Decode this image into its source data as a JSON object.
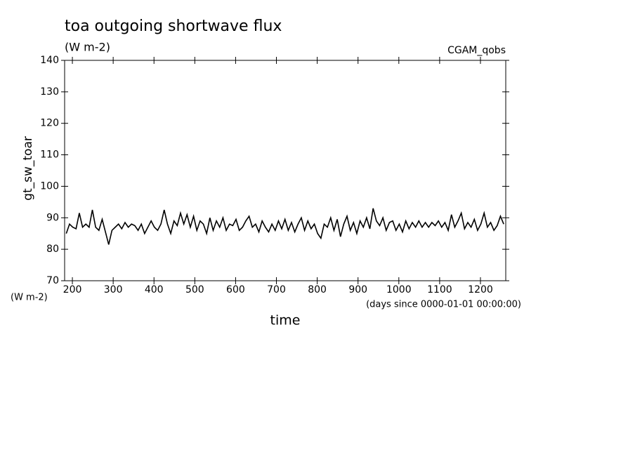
{
  "chart_data": {
    "type": "line",
    "title": "toa outgoing shortwave flux",
    "subtitle": "(W m-2)",
    "annotation": "CGAM_qobs",
    "ylabel": "gt_sw_toar",
    "yunits": "(W m-2)",
    "xlabel": "time",
    "xunits": "(days since 0000-01-01 00:00:00)",
    "color": "#000000",
    "xlim": [
      181,
      1262
    ],
    "xticks": [
      200,
      300,
      400,
      500,
      600,
      700,
      800,
      900,
      1000,
      1100,
      1200
    ],
    "ylim": [
      70,
      140
    ],
    "yticks": [
      70,
      80,
      90,
      100,
      110,
      120,
      130,
      140
    ],
    "x": [
      185,
      193,
      201,
      209,
      217,
      225,
      233,
      241,
      249,
      257,
      265,
      273,
      281,
      289,
      297,
      305,
      313,
      321,
      329,
      337,
      345,
      353,
      361,
      369,
      377,
      385,
      393,
      401,
      409,
      417,
      425,
      433,
      441,
      449,
      457,
      465,
      473,
      481,
      489,
      497,
      505,
      513,
      521,
      529,
      537,
      545,
      553,
      561,
      569,
      577,
      585,
      593,
      601,
      609,
      617,
      625,
      633,
      641,
      649,
      657,
      665,
      673,
      681,
      689,
      697,
      705,
      713,
      721,
      729,
      737,
      745,
      753,
      761,
      769,
      777,
      785,
      793,
      801,
      809,
      817,
      825,
      833,
      841,
      849,
      857,
      865,
      873,
      881,
      889,
      897,
      905,
      913,
      921,
      929,
      937,
      945,
      953,
      961,
      969,
      977,
      985,
      993,
      1001,
      1009,
      1017,
      1025,
      1033,
      1041,
      1049,
      1057,
      1065,
      1073,
      1081,
      1089,
      1097,
      1105,
      1113,
      1121,
      1129,
      1137,
      1145,
      1153,
      1161,
      1169,
      1177,
      1185,
      1193,
      1201,
      1209,
      1217,
      1225,
      1233,
      1241,
      1249,
      1257
    ],
    "values": [
      85,
      88,
      87,
      86.5,
      91.5,
      87,
      88,
      87,
      92.5,
      87,
      86,
      89.5,
      85.5,
      81.5,
      86,
      87,
      88,
      86.5,
      88.5,
      87,
      88,
      87.5,
      86,
      88,
      85,
      87,
      89,
      87,
      86,
      88,
      92.5,
      88,
      85,
      89,
      87.5,
      91.5,
      88,
      91,
      87,
      90.5,
      86,
      89,
      88,
      85,
      90,
      86,
      89,
      87,
      90,
      86,
      88,
      87.5,
      89.5,
      86,
      87,
      89,
      90.5,
      87,
      88,
      85.5,
      89,
      87,
      85.5,
      88,
      86,
      89,
      86.5,
      89.5,
      86,
      88.5,
      85.5,
      88,
      90,
      86,
      89,
      86.5,
      88,
      85,
      83.5,
      88,
      87,
      90,
      86,
      89.5,
      84,
      88,
      90.5,
      86,
      88.5,
      85,
      89,
      87,
      90,
      86.5,
      93,
      89,
      87.5,
      90,
      86,
      88.5,
      89,
      86,
      88,
      85.5,
      89,
      86.5,
      88.5,
      87,
      89,
      87,
      88.5,
      87,
      88.5,
      87.5,
      89,
      87,
      88.5,
      86,
      91,
      87,
      89,
      91.5,
      86.5,
      88.5,
      87,
      89.5,
      86,
      88,
      91.5,
      87,
      88.5,
      86,
      87.5,
      90.5,
      88
    ]
  }
}
